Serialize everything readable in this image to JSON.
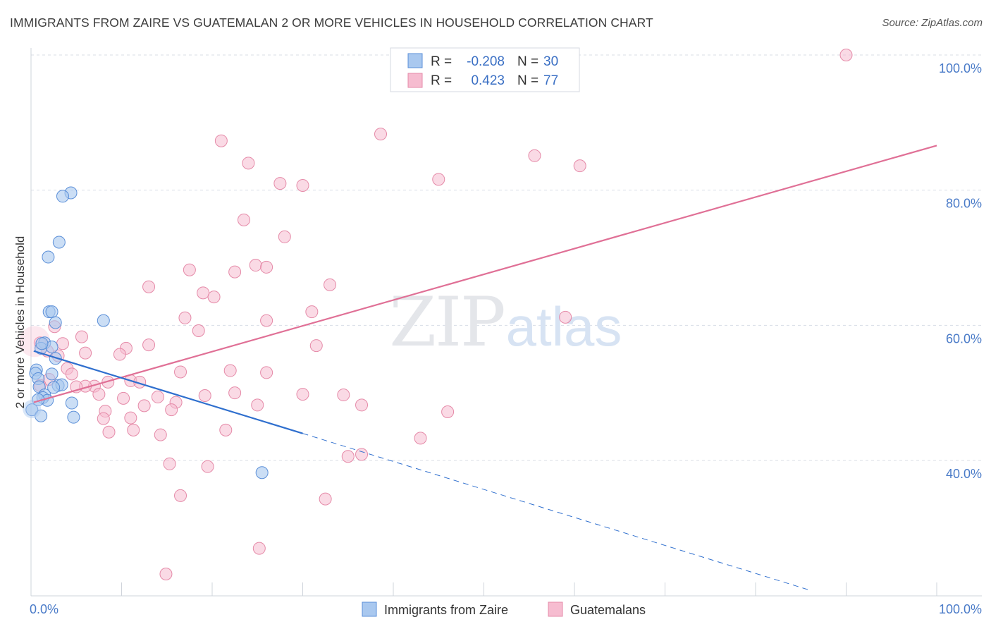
{
  "title": "IMMIGRANTS FROM ZAIRE VS GUATEMALAN 2 OR MORE VEHICLES IN HOUSEHOLD CORRELATION CHART",
  "source": "Source: ZipAtlas.com",
  "watermark": {
    "zip": "ZIP",
    "atlas": "atlas"
  },
  "colors": {
    "blue_fill": "#a9c8ef",
    "blue_stroke": "#5b8fd8",
    "blue_line": "#2f6fce",
    "pink_fill": "#f6bcd0",
    "pink_stroke": "#e58aa8",
    "pink_line": "#e07096",
    "grid": "#d8dde6",
    "tick_label": "#4a7bc8"
  },
  "legend": {
    "rows": [
      {
        "r_label": "R =",
        "r_value": "-0.208",
        "n_label": "N =",
        "n_value": "30"
      },
      {
        "r_label": "R =",
        "r_value": "0.423",
        "n_label": "N =",
        "n_value": "77"
      }
    ]
  },
  "chart_data": {
    "type": "scatter",
    "title": "IMMIGRANTS FROM ZAIRE VS GUATEMALAN 2 OR MORE VEHICLES IN HOUSEHOLD CORRELATION CHART",
    "xlabel": "",
    "ylabel": "2 or more Vehicles in Household",
    "xlim": [
      0,
      100
    ],
    "ylim": [
      20,
      102
    ],
    "x_tick_labels": [
      "0.0%",
      "100.0%"
    ],
    "y_ticks": [
      40,
      60,
      80,
      100
    ],
    "y_tick_labels": [
      "40.0%",
      "60.0%",
      "80.0%",
      "100.0%"
    ],
    "grid": true,
    "legend_position": "top-center",
    "series": [
      {
        "name": "Immigrants from Zaire",
        "color": "#a9c8ef",
        "r": -0.208,
        "n": 30,
        "trend": {
          "x_start": 0.3,
          "y_start": 56.2,
          "x_solid_end": 30,
          "y_solid_end": 44.0,
          "x_dash_end": 86,
          "y_dash_end": 20.8
        },
        "points": [
          [
            4.4,
            79.6
          ],
          [
            3.5,
            79.1
          ],
          [
            3.1,
            72.3
          ],
          [
            1.9,
            70.1
          ],
          [
            2.0,
            62.0
          ],
          [
            2.3,
            62.0
          ],
          [
            2.7,
            60.4
          ],
          [
            8.0,
            60.7
          ],
          [
            1.5,
            57.4
          ],
          [
            1.1,
            56.6
          ],
          [
            2.3,
            56.8
          ],
          [
            2.7,
            55.1
          ],
          [
            0.6,
            53.4
          ],
          [
            0.5,
            52.9
          ],
          [
            0.8,
            52.1
          ],
          [
            2.3,
            52.8
          ],
          [
            3.0,
            51.1
          ],
          [
            3.4,
            51.2
          ],
          [
            2.5,
            50.8
          ],
          [
            0.9,
            50.9
          ],
          [
            1.5,
            49.7
          ],
          [
            1.3,
            49.3
          ],
          [
            1.8,
            48.9
          ],
          [
            0.8,
            49.0
          ],
          [
            4.5,
            48.5
          ],
          [
            0.1,
            47.5
          ],
          [
            1.1,
            46.6
          ],
          [
            4.7,
            46.4
          ],
          [
            25.5,
            38.2
          ],
          [
            1.2,
            57.3
          ]
        ]
      },
      {
        "name": "Guatemalans",
        "color": "#f6bcd0",
        "r": 0.423,
        "n": 77,
        "trend": {
          "x_start": 0.3,
          "y_start": 48.6,
          "x_end": 100,
          "y_end": 86.6
        },
        "points": [
          [
            90.0,
            100.0
          ],
          [
            38.6,
            88.3
          ],
          [
            21.0,
            87.3
          ],
          [
            55.6,
            85.1
          ],
          [
            60.6,
            83.6
          ],
          [
            24.0,
            84.0
          ],
          [
            45.0,
            81.6
          ],
          [
            27.5,
            81.0
          ],
          [
            30.0,
            80.7
          ],
          [
            23.5,
            75.6
          ],
          [
            28.0,
            73.1
          ],
          [
            17.5,
            68.2
          ],
          [
            22.5,
            67.9
          ],
          [
            24.8,
            68.9
          ],
          [
            26.0,
            68.6
          ],
          [
            33.0,
            66.0
          ],
          [
            13.0,
            65.7
          ],
          [
            19.0,
            64.8
          ],
          [
            20.2,
            64.2
          ],
          [
            31.0,
            62.0
          ],
          [
            17.0,
            61.1
          ],
          [
            26.0,
            60.7
          ],
          [
            59.0,
            61.2
          ],
          [
            2.6,
            59.8
          ],
          [
            18.5,
            59.2
          ],
          [
            5.6,
            58.3
          ],
          [
            1.0,
            57.4
          ],
          [
            3.5,
            57.3
          ],
          [
            13.0,
            57.1
          ],
          [
            10.5,
            56.6
          ],
          [
            1.8,
            56.2
          ],
          [
            6.0,
            55.9
          ],
          [
            9.8,
            55.7
          ],
          [
            3.0,
            55.5
          ],
          [
            4.0,
            53.6
          ],
          [
            16.5,
            53.1
          ],
          [
            22.0,
            53.3
          ],
          [
            26.0,
            53.0
          ],
          [
            4.5,
            52.8
          ],
          [
            11.0,
            51.8
          ],
          [
            8.5,
            51.6
          ],
          [
            2.0,
            52.0
          ],
          [
            12.0,
            51.6
          ],
          [
            7.0,
            51.0
          ],
          [
            6.0,
            51.0
          ],
          [
            5.0,
            50.9
          ],
          [
            1.0,
            51.1
          ],
          [
            22.5,
            50.0
          ],
          [
            19.2,
            49.6
          ],
          [
            30.0,
            49.8
          ],
          [
            34.5,
            49.7
          ],
          [
            7.5,
            49.8
          ],
          [
            10.2,
            49.2
          ],
          [
            14.0,
            49.4
          ],
          [
            16.0,
            48.6
          ],
          [
            8.2,
            47.3
          ],
          [
            12.5,
            48.1
          ],
          [
            15.5,
            47.5
          ],
          [
            25.0,
            48.2
          ],
          [
            36.5,
            48.2
          ],
          [
            46.0,
            47.2
          ],
          [
            8.0,
            46.2
          ],
          [
            11.0,
            46.3
          ],
          [
            8.6,
            44.2
          ],
          [
            11.3,
            44.5
          ],
          [
            14.3,
            43.8
          ],
          [
            21.5,
            44.5
          ],
          [
            43.0,
            43.3
          ],
          [
            35.0,
            40.6
          ],
          [
            36.5,
            40.9
          ],
          [
            15.3,
            39.5
          ],
          [
            19.5,
            39.1
          ],
          [
            16.5,
            34.8
          ],
          [
            32.5,
            34.3
          ],
          [
            25.2,
            27.0
          ],
          [
            14.9,
            23.2
          ],
          [
            31.5,
            57.0
          ]
        ]
      }
    ]
  },
  "bottom_legend": [
    {
      "label": "Immigrants from Zaire"
    },
    {
      "label": "Guatemalans"
    }
  ]
}
